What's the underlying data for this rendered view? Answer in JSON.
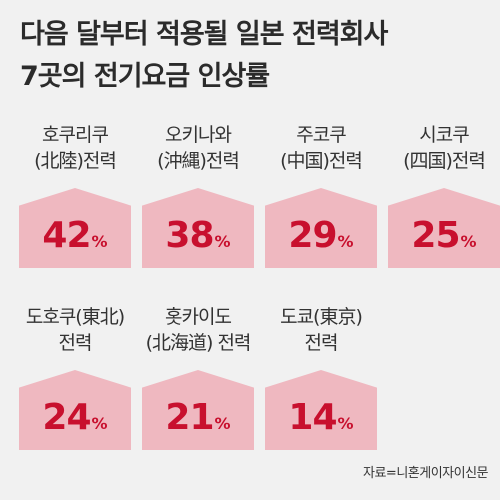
{
  "title": {
    "line1": "다음 달부터 적용될 일본 전력회사",
    "line2": "7곳의 전기요금 인상률"
  },
  "chart_data": {
    "type": "table",
    "unit": "%",
    "items": [
      {
        "company": [
          "호쿠리쿠",
          "(北陸)전력"
        ],
        "value": 42
      },
      {
        "company": [
          "오키나와",
          "(沖縄)전력"
        ],
        "value": 38
      },
      {
        "company": [
          "주코쿠",
          "(中国)전력"
        ],
        "value": 29
      },
      {
        "company": [
          "시코쿠",
          "(四国)전력"
        ],
        "value": 25
      },
      {
        "company": [
          "도호쿠(東北)",
          "전력"
        ],
        "value": 24
      },
      {
        "company": [
          "홋카이도",
          "(北海道) 전력"
        ],
        "value": 21
      },
      {
        "company": [
          "도쿄(東京)",
          "전력"
        ],
        "value": 14
      }
    ]
  },
  "colors": {
    "background": "#f1f1f1",
    "house_fill": "#efb8c0",
    "value_text": "#c8102e",
    "title_text": "#2b2b2b"
  },
  "source": "자료=니혼게이자이신문"
}
